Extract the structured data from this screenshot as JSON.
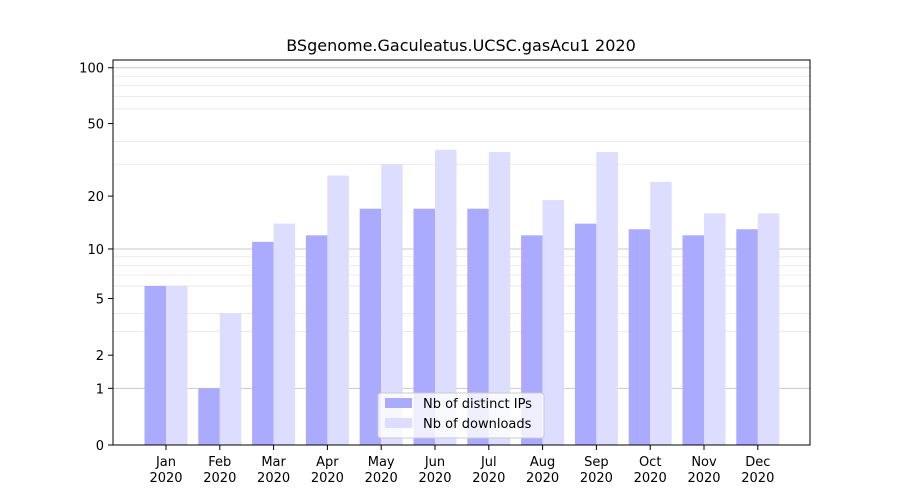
{
  "chart_data": {
    "type": "bar",
    "title": "BSgenome.Gaculeatus.UCSC.gasAcu1 2020",
    "categories": [
      {
        "month": "Jan",
        "year": "2020"
      },
      {
        "month": "Feb",
        "year": "2020"
      },
      {
        "month": "Mar",
        "year": "2020"
      },
      {
        "month": "Apr",
        "year": "2020"
      },
      {
        "month": "May",
        "year": "2020"
      },
      {
        "month": "Jun",
        "year": "2020"
      },
      {
        "month": "Jul",
        "year": "2020"
      },
      {
        "month": "Aug",
        "year": "2020"
      },
      {
        "month": "Sep",
        "year": "2020"
      },
      {
        "month": "Oct",
        "year": "2020"
      },
      {
        "month": "Nov",
        "year": "2020"
      },
      {
        "month": "Dec",
        "year": "2020"
      }
    ],
    "series": [
      {
        "name": "Nb of distinct IPs",
        "color": "#aaaaff",
        "values": [
          6,
          1,
          11,
          12,
          17,
          17,
          17,
          12,
          14,
          13,
          12,
          13
        ]
      },
      {
        "name": "Nb of downloads",
        "color": "#ddddff",
        "values": [
          6,
          4,
          14,
          26,
          30,
          36,
          35,
          19,
          35,
          24,
          16,
          16
        ]
      }
    ],
    "yscale": "log(1+y)",
    "ylim": [
      0,
      110
    ],
    "yticks": [
      "0",
      "1",
      "2",
      "5",
      "10",
      "20",
      "50",
      "100"
    ],
    "grid": "y",
    "legend_position": "bottom-center",
    "xlabel": "",
    "ylabel": ""
  }
}
